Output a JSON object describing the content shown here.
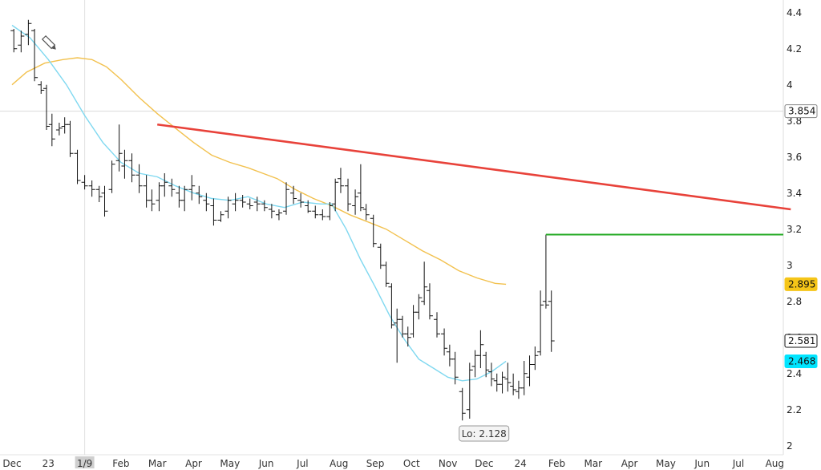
{
  "chart_data": {
    "type": "ohlc",
    "x_ticks": [
      "Dec",
      "23",
      "1/9",
      "Feb",
      "Mar",
      "Apr",
      "May",
      "Jun",
      "Jul",
      "Aug",
      "Sep",
      "Oct",
      "Nov",
      "Dec",
      "24",
      "Feb",
      "Mar",
      "Apr",
      "May",
      "Jun",
      "Jul",
      "Aug"
    ],
    "y_ticks": [
      "2",
      "2.2",
      "2.4",
      "2.6",
      "2.8",
      "3",
      "3.2",
      "3.4",
      "3.6",
      "3.8",
      "4",
      "4.2",
      "4.4"
    ],
    "ylim": [
      1.95,
      4.47
    ],
    "grid": false,
    "crosshair": {
      "date": "1/9",
      "price": 3.854
    },
    "price_badges": [
      {
        "label": "3.854",
        "value": 3.854,
        "color": "#ffffff",
        "border": "#888888"
      },
      {
        "label": "2.895",
        "value": 2.895,
        "color": "#f5c518",
        "border": "#f5c518"
      },
      {
        "label": "2.581",
        "value": 2.581,
        "color": "#ffffff",
        "border": "#111111"
      },
      {
        "label": "2.468",
        "value": 2.468,
        "color": "#00e5ff",
        "border": "#00e5ff"
      }
    ],
    "annotation": {
      "label": "Lo: 2.128",
      "value": 2.128
    },
    "trendline": {
      "color": "#e8423a",
      "start": {
        "date": "Mar",
        "value": 3.78
      },
      "end": {
        "date": "Aug",
        "value": 3.31
      }
    },
    "level_line": {
      "color": "#22aa22",
      "value": 3.17
    },
    "series": [
      {
        "kind": "ma-slow",
        "color": "#f2c14e",
        "values": [
          [
            0.0,
            4.0
          ],
          [
            0.4,
            4.07
          ],
          [
            0.9,
            4.12
          ],
          [
            1.4,
            4.14
          ],
          [
            1.8,
            4.15
          ],
          [
            2.2,
            4.14
          ],
          [
            2.6,
            4.1
          ],
          [
            3.0,
            4.03
          ],
          [
            3.5,
            3.93
          ],
          [
            4.0,
            3.84
          ],
          [
            4.5,
            3.76
          ],
          [
            5.0,
            3.68
          ],
          [
            5.5,
            3.61
          ],
          [
            6.0,
            3.57
          ],
          [
            6.5,
            3.54
          ],
          [
            6.9,
            3.51
          ],
          [
            7.3,
            3.48
          ],
          [
            7.8,
            3.42
          ],
          [
            8.3,
            3.37
          ],
          [
            8.8,
            3.33
          ],
          [
            9.3,
            3.28
          ],
          [
            9.8,
            3.24
          ],
          [
            10.3,
            3.2
          ],
          [
            10.8,
            3.14
          ],
          [
            11.3,
            3.08
          ],
          [
            11.8,
            3.03
          ],
          [
            12.3,
            2.97
          ],
          [
            12.8,
            2.93
          ],
          [
            13.3,
            2.9
          ],
          [
            13.6,
            2.895
          ]
        ]
      },
      {
        "kind": "ma-fast",
        "color": "#7fd8f0",
        "values": [
          [
            0.0,
            4.33
          ],
          [
            0.5,
            4.26
          ],
          [
            1.0,
            4.14
          ],
          [
            1.5,
            4.0
          ],
          [
            2.0,
            3.83
          ],
          [
            2.5,
            3.68
          ],
          [
            3.0,
            3.57
          ],
          [
            3.5,
            3.51
          ],
          [
            4.0,
            3.49
          ],
          [
            4.5,
            3.44
          ],
          [
            5.0,
            3.4
          ],
          [
            5.5,
            3.37
          ],
          [
            6.0,
            3.36
          ],
          [
            6.5,
            3.38
          ],
          [
            7.0,
            3.34
          ],
          [
            7.5,
            3.32
          ],
          [
            8.0,
            3.35
          ],
          [
            8.5,
            3.34
          ],
          [
            8.8,
            3.34
          ],
          [
            9.2,
            3.2
          ],
          [
            9.6,
            3.03
          ],
          [
            10.0,
            2.88
          ],
          [
            10.4,
            2.72
          ],
          [
            10.8,
            2.59
          ],
          [
            11.2,
            2.48
          ],
          [
            11.6,
            2.43
          ],
          [
            12.0,
            2.38
          ],
          [
            12.4,
            2.36
          ],
          [
            12.8,
            2.37
          ],
          [
            13.2,
            2.41
          ],
          [
            13.6,
            2.468
          ]
        ]
      },
      {
        "kind": "ohlc",
        "color": "#111111",
        "values": [
          [
            0.05,
            4.3,
            4.31,
            4.18,
            4.2
          ],
          [
            0.25,
            4.22,
            4.3,
            4.18,
            4.27
          ],
          [
            0.45,
            4.28,
            4.36,
            4.22,
            4.34
          ],
          [
            0.62,
            4.3,
            4.31,
            4.02,
            4.04
          ],
          [
            0.8,
            4.0,
            4.02,
            3.95,
            3.97
          ],
          [
            0.95,
            3.98,
            4.0,
            3.75,
            3.77
          ],
          [
            1.1,
            3.78,
            3.84,
            3.66,
            3.7
          ],
          [
            1.3,
            3.75,
            3.79,
            3.72,
            3.76
          ],
          [
            1.45,
            3.77,
            3.82,
            3.73,
            3.78
          ],
          [
            1.6,
            3.78,
            3.8,
            3.6,
            3.62
          ],
          [
            1.8,
            3.62,
            3.64,
            3.45,
            3.47
          ],
          [
            2.0,
            3.46,
            3.5,
            3.42,
            3.44
          ],
          [
            2.2,
            3.44,
            3.47,
            3.38,
            3.42
          ],
          [
            2.4,
            3.42,
            3.44,
            3.35,
            3.38
          ],
          [
            2.55,
            3.4,
            3.44,
            3.27,
            3.3
          ],
          [
            2.75,
            3.42,
            3.58,
            3.4,
            3.56
          ],
          [
            2.95,
            3.58,
            3.78,
            3.52,
            3.62
          ],
          [
            3.1,
            3.55,
            3.64,
            3.48,
            3.58
          ],
          [
            3.3,
            3.58,
            3.62,
            3.46,
            3.5
          ],
          [
            3.5,
            3.5,
            3.56,
            3.4,
            3.44
          ],
          [
            3.7,
            3.44,
            3.5,
            3.32,
            3.36
          ],
          [
            3.85,
            3.36,
            3.42,
            3.3,
            3.34
          ],
          [
            4.05,
            3.36,
            3.46,
            3.3,
            3.44
          ],
          [
            4.2,
            3.44,
            3.51,
            3.38,
            3.46
          ],
          [
            4.4,
            3.44,
            3.48,
            3.38,
            3.42
          ],
          [
            4.6,
            3.4,
            3.44,
            3.32,
            3.36
          ],
          [
            4.75,
            3.36,
            3.44,
            3.3,
            3.42
          ],
          [
            4.95,
            3.42,
            3.5,
            3.36,
            3.44
          ],
          [
            5.15,
            3.4,
            3.44,
            3.34,
            3.38
          ],
          [
            5.35,
            3.36,
            3.4,
            3.3,
            3.34
          ],
          [
            5.55,
            3.33,
            3.37,
            3.22,
            3.25
          ],
          [
            5.75,
            3.25,
            3.3,
            3.24,
            3.28
          ],
          [
            5.95,
            3.3,
            3.38,
            3.26,
            3.36
          ],
          [
            6.15,
            3.34,
            3.4,
            3.3,
            3.36
          ],
          [
            6.35,
            3.36,
            3.39,
            3.32,
            3.35
          ],
          [
            6.55,
            3.34,
            3.37,
            3.31,
            3.33
          ],
          [
            6.75,
            3.35,
            3.38,
            3.3,
            3.34
          ],
          [
            6.95,
            3.34,
            3.36,
            3.3,
            3.32
          ],
          [
            7.15,
            3.31,
            3.34,
            3.26,
            3.3
          ],
          [
            7.35,
            3.28,
            3.31,
            3.25,
            3.29
          ],
          [
            7.55,
            3.3,
            3.46,
            3.28,
            3.42
          ],
          [
            7.75,
            3.4,
            3.44,
            3.34,
            3.37
          ],
          [
            7.95,
            3.36,
            3.4,
            3.32,
            3.35
          ],
          [
            8.15,
            3.33,
            3.36,
            3.29,
            3.3
          ],
          [
            8.35,
            3.3,
            3.33,
            3.26,
            3.28
          ],
          [
            8.55,
            3.28,
            3.31,
            3.25,
            3.27
          ],
          [
            8.75,
            3.27,
            3.35,
            3.25,
            3.33
          ],
          [
            8.9,
            3.34,
            3.48,
            3.3,
            3.46
          ],
          [
            9.05,
            3.48,
            3.54,
            3.4,
            3.44
          ],
          [
            9.25,
            3.44,
            3.48,
            3.3,
            3.34
          ],
          [
            9.45,
            3.33,
            3.42,
            3.28,
            3.38
          ],
          [
            9.6,
            3.4,
            3.56,
            3.3,
            3.32
          ],
          [
            9.75,
            3.31,
            3.34,
            3.25,
            3.28
          ],
          [
            9.95,
            3.26,
            3.28,
            3.1,
            3.12
          ],
          [
            10.15,
            3.1,
            3.12,
            2.98,
            3.0
          ],
          [
            10.3,
            3.0,
            3.02,
            2.88,
            2.9
          ],
          [
            10.45,
            2.88,
            2.9,
            2.65,
            2.67
          ],
          [
            10.6,
            2.68,
            2.76,
            2.46,
            2.7
          ],
          [
            10.75,
            2.7,
            2.72,
            2.6,
            2.62
          ],
          [
            10.9,
            2.62,
            2.66,
            2.55,
            2.6
          ],
          [
            11.05,
            2.62,
            2.78,
            2.6,
            2.74
          ],
          [
            11.2,
            2.74,
            2.84,
            2.7,
            2.82
          ],
          [
            11.35,
            2.8,
            3.02,
            2.78,
            2.88
          ],
          [
            11.5,
            2.86,
            2.9,
            2.7,
            2.72
          ],
          [
            11.7,
            2.7,
            2.74,
            2.6,
            2.62
          ],
          [
            11.9,
            2.62,
            2.65,
            2.5,
            2.54
          ],
          [
            12.05,
            2.52,
            2.56,
            2.44,
            2.48
          ],
          [
            12.2,
            2.48,
            2.52,
            2.34,
            2.38
          ],
          [
            12.4,
            2.3,
            2.32,
            2.14,
            2.18
          ],
          [
            12.6,
            2.2,
            2.46,
            2.15,
            2.42
          ],
          [
            12.75,
            2.44,
            2.53,
            2.38,
            2.5
          ],
          [
            12.9,
            2.5,
            2.64,
            2.43,
            2.56
          ],
          [
            13.05,
            2.5,
            2.52,
            2.38,
            2.42
          ],
          [
            13.2,
            2.41,
            2.46,
            2.33,
            2.37
          ],
          [
            13.35,
            2.36,
            2.4,
            2.3,
            2.34
          ],
          [
            13.5,
            2.34,
            2.41,
            2.29,
            2.38
          ],
          [
            13.65,
            2.37,
            2.46,
            2.3,
            2.35
          ],
          [
            13.8,
            2.33,
            2.4,
            2.28,
            2.31
          ],
          [
            13.95,
            2.3,
            2.36,
            2.26,
            2.32
          ],
          [
            14.1,
            2.32,
            2.47,
            2.28,
            2.4
          ],
          [
            14.25,
            2.38,
            2.5,
            2.33,
            2.45
          ],
          [
            14.4,
            2.45,
            2.55,
            2.42,
            2.5
          ],
          [
            14.55,
            2.52,
            2.86,
            2.5,
            2.78
          ],
          [
            14.7,
            2.8,
            3.17,
            2.76,
            2.78
          ],
          [
            14.85,
            2.8,
            2.86,
            2.52,
            2.581
          ]
        ]
      }
    ]
  }
}
